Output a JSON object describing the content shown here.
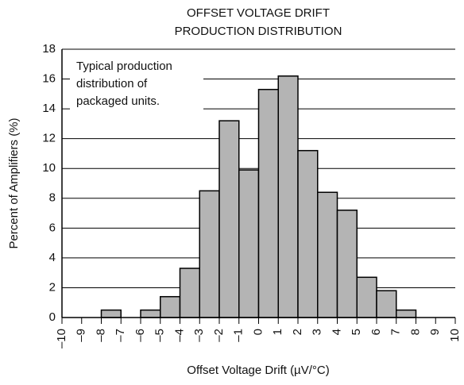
{
  "chart_data": {
    "type": "histogram",
    "title": [
      "OFFSET VOLTAGE DRIFT",
      "PRODUCTION DISTRIBUTION"
    ],
    "annotation": [
      "Typical production",
      "distribution of",
      "packaged units."
    ],
    "xlabel": "Offset Voltage Drift (µV/°C)",
    "ylabel": "Percent of Amplifiers (%)",
    "bins": [
      -10,
      -9,
      -8,
      -7,
      -6,
      -5,
      -4,
      -3,
      -2,
      -1,
      0,
      1,
      2,
      3,
      4,
      5,
      6,
      7,
      8,
      9,
      10
    ],
    "values": [
      0,
      0,
      0.5,
      0,
      0.5,
      1.4,
      3.3,
      8.5,
      13.2,
      9.9,
      15.3,
      16.2,
      11.2,
      8.4,
      7.2,
      2.7,
      1.8,
      0.5,
      0,
      0
    ],
    "color": "#b4b4b4",
    "xlim": [
      -10,
      10
    ],
    "xticks": [
      {
        "value": -10,
        "label": "–10"
      },
      {
        "value": -9,
        "label": "–9"
      },
      {
        "value": -8,
        "label": "–8"
      },
      {
        "value": -7,
        "label": "–7"
      },
      {
        "value": -6,
        "label": "–6"
      },
      {
        "value": -5,
        "label": "–5"
      },
      {
        "value": -4,
        "label": "–4"
      },
      {
        "value": -3,
        "label": "–3"
      },
      {
        "value": -2,
        "label": "–2"
      },
      {
        "value": -1,
        "label": "–1"
      },
      0,
      1,
      2,
      3,
      4,
      5,
      6,
      7,
      8,
      9,
      10
    ],
    "ylim": [
      0,
      18
    ],
    "yticks": [
      0,
      2,
      4,
      6,
      8,
      10,
      12,
      14,
      16,
      18
    ],
    "grid": true
  }
}
